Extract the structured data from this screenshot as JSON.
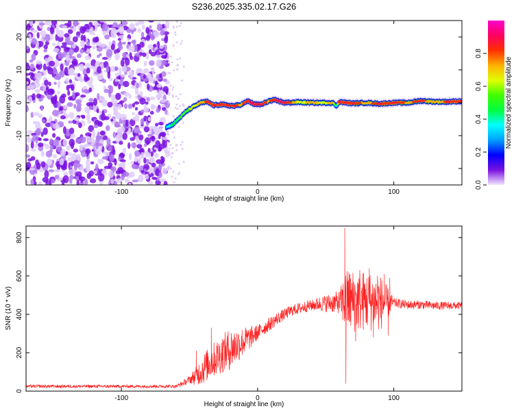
{
  "page": {
    "title": "S236.2025.335.02.17.G26"
  },
  "chart_data": [
    {
      "type": "heatmap",
      "title": "S236.2025.335.02.17.G26",
      "xlabel": "Height of straight line (km)",
      "ylabel": "Frequency (Hz)",
      "xlim": [
        -170,
        150
      ],
      "ylim": [
        -25,
        25
      ],
      "x_ticks": [
        -100,
        0,
        100
      ],
      "y_ticks": [
        -20,
        -10,
        0,
        10,
        20
      ],
      "colorbar": {
        "label": "Normalized spectral amplitude",
        "range": [
          0,
          1
        ],
        "ticks": [
          0.0,
          0.2,
          0.4,
          0.6,
          0.8
        ],
        "colormap": [
          "#f2e6ff",
          "#7a12e0",
          "#0000ff",
          "#00a0ff",
          "#00ffff",
          "#00ff40",
          "#40ff00",
          "#e0ff00",
          "#ffb000",
          "#ff3000",
          "#ff0060",
          "#ff00cc"
        ]
      },
      "signal_track": {
        "x": [
          -67,
          -62,
          -57,
          -52,
          -47,
          -42,
          -37,
          -32,
          -27,
          -22,
          -17,
          -12,
          -7,
          -2,
          3,
          8,
          13,
          20,
          30,
          40,
          50,
          55,
          58,
          60,
          65,
          70,
          80,
          90,
          100,
          110,
          120,
          130,
          140,
          150
        ],
        "freq": [
          -7.5,
          -6.5,
          -4.5,
          -2.5,
          -1.2,
          0,
          0.3,
          -0.8,
          -0.5,
          -0.8,
          -1,
          -0.5,
          0.5,
          -0.5,
          -0.5,
          0.5,
          0.8,
          0,
          0.2,
          0,
          0,
          0,
          -1,
          0.3,
          0,
          -0.2,
          0,
          -0.3,
          0,
          0,
          0.6,
          0.3,
          0.3,
          0.5
        ],
        "amplitude": [
          0.35,
          0.5,
          0.55,
          0.6,
          0.7,
          0.75,
          0.85,
          0.9,
          0.85,
          0.9,
          0.85,
          0.8,
          0.9,
          1,
          0.95,
          0.8,
          0.9,
          0.95,
          0.7,
          0.75,
          0.7,
          0.8,
          0.4,
          0.9,
          0.9,
          0.85,
          0.8,
          0.85,
          0.9,
          0.8,
          0.85,
          0.75,
          0.85,
          0.9
        ]
      },
      "noise_region": {
        "x_range": [
          -170,
          -66
        ],
        "amplitude": 0.15
      }
    },
    {
      "type": "line",
      "xlabel": "Height of straight line (km)",
      "ylabel": "SNR (10 * v/v)",
      "xlim": [
        -170,
        150
      ],
      "ylim": [
        0,
        860
      ],
      "x_ticks": [
        -100,
        0,
        100
      ],
      "y_ticks": [
        0,
        200,
        400,
        600,
        800
      ],
      "color": "#ff2020",
      "envelope": {
        "x": [
          -170,
          -60,
          -55,
          -45,
          -35,
          -25,
          -15,
          -5,
          5,
          15,
          25,
          35,
          45,
          55,
          62,
          70,
          80,
          90,
          100,
          110,
          120,
          130,
          140,
          150
        ],
        "y": [
          25,
          25,
          40,
          80,
          150,
          200,
          240,
          280,
          330,
          380,
          420,
          440,
          455,
          460,
          465,
          470,
          470,
          460,
          460,
          450,
          450,
          445,
          445,
          445
        ]
      },
      "fluctuation": {
        "x": [
          -170,
          -60,
          -50,
          -40,
          -20,
          0,
          20,
          40,
          60,
          65,
          90,
          100,
          150
        ],
        "y": [
          8,
          8,
          20,
          80,
          110,
          40,
          30,
          30,
          60,
          170,
          150,
          25,
          20
        ]
      },
      "spikes": [
        {
          "x": 64,
          "y": 850
        },
        {
          "x": 64.8,
          "y": 40
        },
        {
          "x": 67,
          "y": 620
        },
        {
          "x": 75,
          "y": 630
        },
        {
          "x": 82,
          "y": 640
        },
        {
          "x": 88,
          "y": 600
        },
        {
          "x": 93,
          "y": 610
        },
        {
          "x": 97,
          "y": 590
        },
        {
          "x": 72,
          "y": 260
        },
        {
          "x": 85,
          "y": 280
        },
        {
          "x": 96,
          "y": 290
        },
        {
          "x": -45,
          "y": 210
        },
        {
          "x": -34,
          "y": 330
        }
      ]
    }
  ]
}
